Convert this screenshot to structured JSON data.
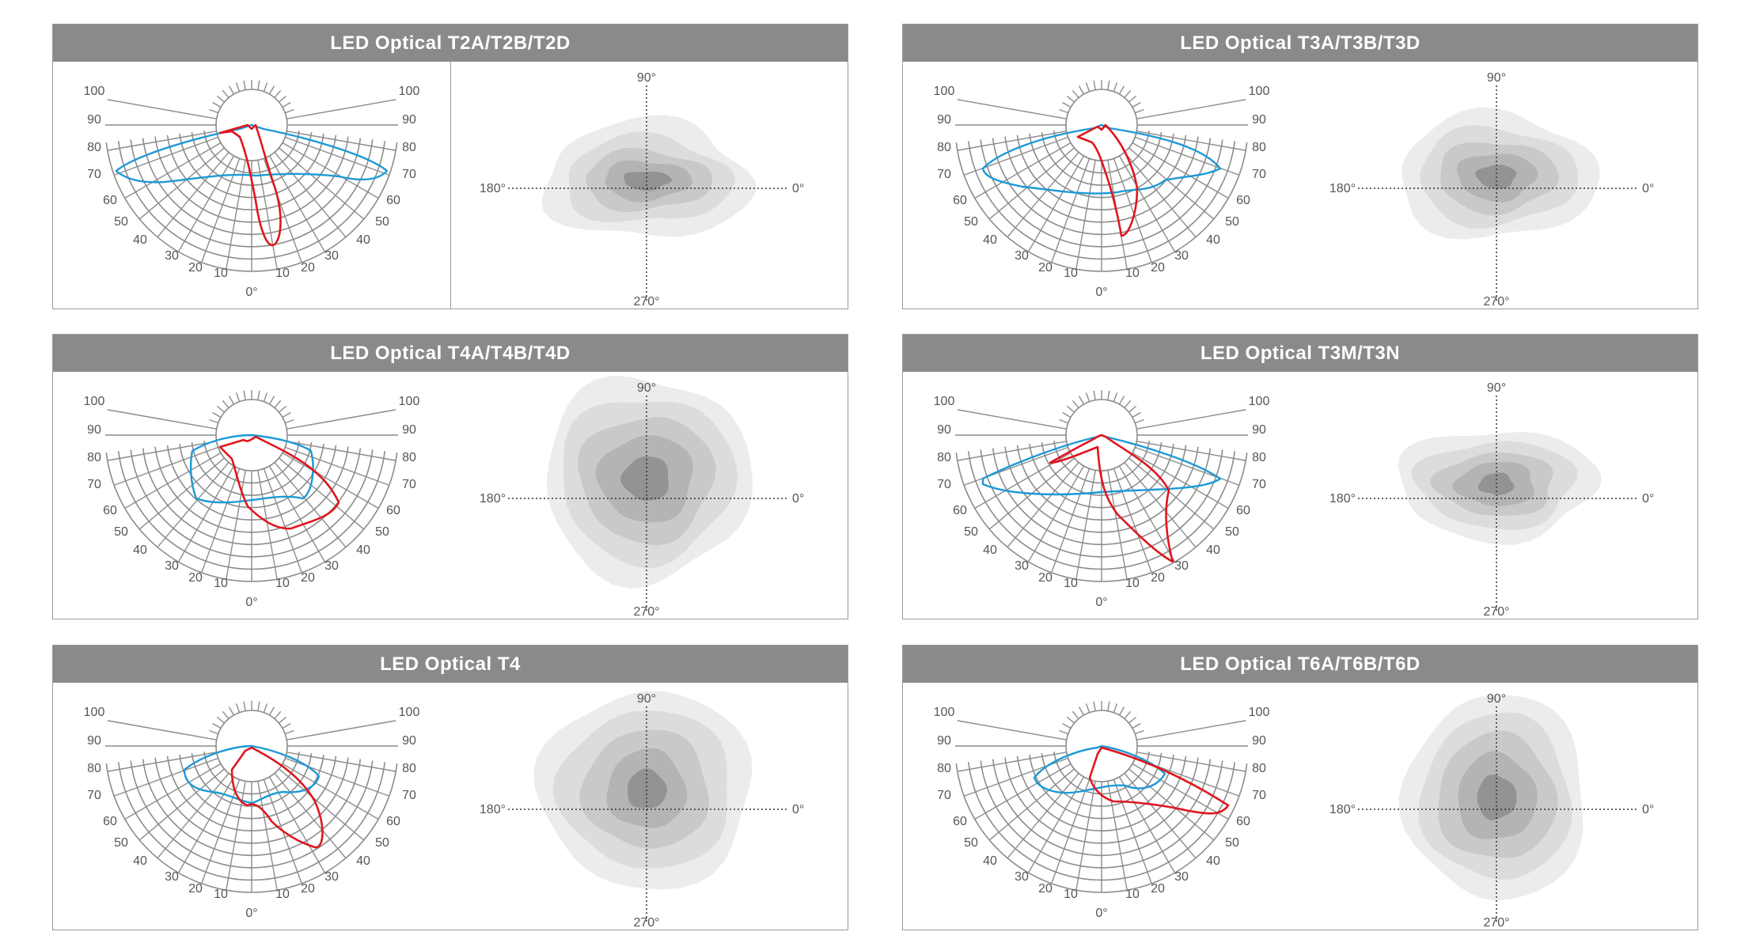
{
  "panels": [
    {
      "title": "LED Optical T2A/T2B/T2D",
      "divider": true,
      "polar": {
        "scale_left": [
          "100",
          "90",
          "80",
          "70",
          "60",
          "50",
          "40",
          "30",
          "20",
          "10",
          "0°"
        ],
        "scale_right": [
          "100",
          "90",
          "80",
          "70",
          "60",
          "50",
          "40",
          "30",
          "20",
          "10"
        ]
      },
      "iso": {
        "top": "90°",
        "left": "180°",
        "right": "0°",
        "bottom": "270°"
      }
    },
    {
      "title": "LED Optical T3A/T3B/T3D",
      "divider": false,
      "polar": {
        "scale_left": [
          "100",
          "90",
          "80",
          "70",
          "60",
          "50",
          "40",
          "30",
          "20",
          "10",
          "0°"
        ],
        "scale_right": [
          "100",
          "90",
          "80",
          "70",
          "60",
          "50",
          "40",
          "30",
          "20",
          "10"
        ]
      },
      "iso": {
        "top": "90°",
        "left": "180°",
        "right": "0°",
        "bottom": "270°"
      }
    },
    {
      "title": "LED Optical T4A/T4B/T4D",
      "divider": false,
      "polar": {
        "scale_left": [
          "100",
          "90",
          "80",
          "70",
          "60",
          "50",
          "40",
          "30",
          "20",
          "10",
          "0°"
        ],
        "scale_right": [
          "100",
          "90",
          "80",
          "70",
          "60",
          "50",
          "40",
          "30",
          "20",
          "10"
        ]
      },
      "iso": {
        "top": "90°",
        "left": "180°",
        "right": "0°",
        "bottom": "270°"
      }
    },
    {
      "title": "LED Optical T3M/T3N",
      "divider": false,
      "polar": {
        "scale_left": [
          "100",
          "90",
          "80",
          "70",
          "60",
          "50",
          "40",
          "30",
          "20",
          "10",
          "0°"
        ],
        "scale_right": [
          "100",
          "90",
          "80",
          "70",
          "60",
          "50",
          "40",
          "30",
          "20",
          "10"
        ]
      },
      "iso": {
        "top": "90°",
        "left": "180°",
        "right": "0°",
        "bottom": "270°"
      }
    },
    {
      "title": "LED Optical T4",
      "divider": false,
      "polar": {
        "scale_left": [
          "100",
          "90",
          "80",
          "70",
          "60",
          "50",
          "40",
          "30",
          "20",
          "10",
          "0°"
        ],
        "scale_right": [
          "100",
          "90",
          "80",
          "70",
          "60",
          "50",
          "40",
          "30",
          "20",
          "10"
        ]
      },
      "iso": {
        "top": "90°",
        "left": "180°",
        "right": "0°",
        "bottom": "270°"
      }
    },
    {
      "title": "LED Optical T6A/T6B/T6D",
      "divider": false,
      "polar": {
        "scale_left": [
          "100",
          "90",
          "80",
          "70",
          "60",
          "50",
          "40",
          "30",
          "20",
          "10",
          "0°"
        ],
        "scale_right": [
          "100",
          "90",
          "80",
          "70",
          "60",
          "50",
          "40",
          "30",
          "20",
          "10"
        ]
      },
      "iso": {
        "top": "90°",
        "left": "180°",
        "right": "0°",
        "bottom": "270°"
      }
    }
  ],
  "colors": {
    "header": "#8a8a8a",
    "grid": "#8c8c8c",
    "curve_red": "#e0161e",
    "curve_blue": "#1d9ad6"
  }
}
